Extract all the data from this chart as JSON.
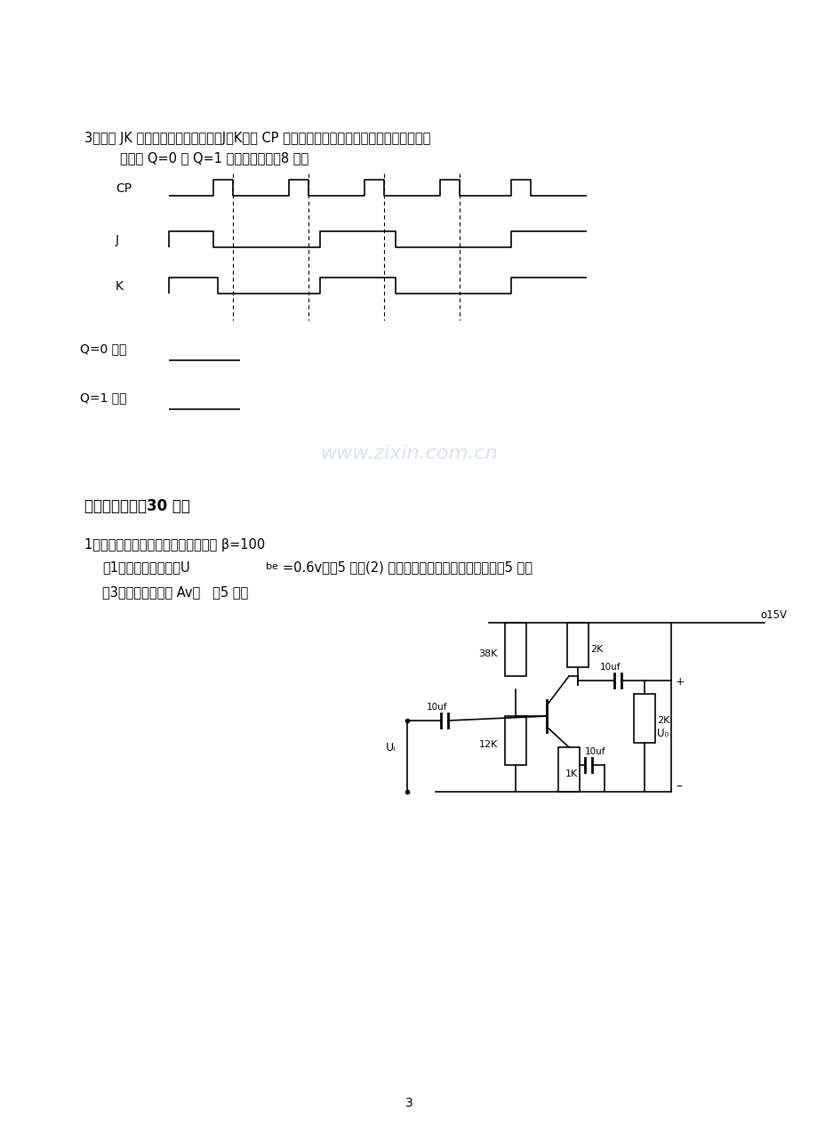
{
  "bg_color": "#ffffff",
  "text_color": "#000000",
  "page_number": "3",
  "watermark": "www.zixin.com.cn",
  "watermark_color": "#c8d8e8",
  "section3_text_line1": "3、主从 JK 触发器（下降沿触发），J、K端和 CP 端的输入信号波形如图所示，分别画出触发",
  "section3_text_line2": "器初态 Q=0 和 Q=1 的输出波形。（8 分）",
  "section4_title": "四、计算题：（30 分）",
  "section4_q1_line1": "1、如图电路中各参数如图所示，已知 β=100",
  "section4_q1_line2": "（1）静态工作点。（Uᵇₑ=0.6v）（5 分）(2) 画出交流通路和微变等效电路。（5 分）",
  "section4_q1_line3": "（3）电压放大倍数 Av。   （5 分）",
  "cp_label": "CP",
  "j_label": "J",
  "k_label": "K",
  "q0_label": "Q=0 时：",
  "q1_label": "Q=1 时："
}
